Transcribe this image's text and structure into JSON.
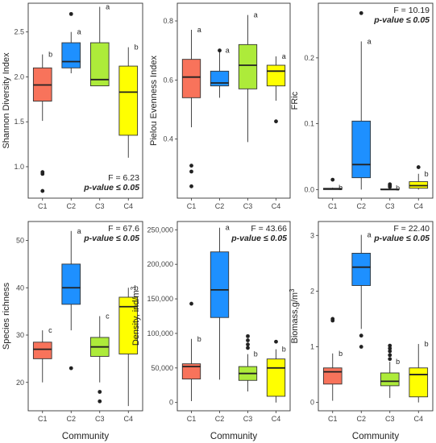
{
  "box_color": "#333333",
  "group_colors": [
    "#F8735B",
    "#1E90FF",
    "#ADEB3A",
    "#FFFF00"
  ],
  "shared_xlabel": "Community",
  "chart_data": [
    {
      "type": "boxplot",
      "ylabel": "Shannon Diversity Index",
      "categories": [
        "C1",
        "C2",
        "C3",
        "C4"
      ],
      "ylim": [
        0.65,
        2.82
      ],
      "yticks": [
        1.0,
        1.5,
        2.0,
        2.5
      ],
      "ytick_labels": [
        "1.0",
        "1.5",
        "2.0",
        "2.5"
      ],
      "stats": {
        "f": "F = 6.23",
        "p": "p-value ≤ 0.05"
      },
      "boxes": [
        {
          "label": "b",
          "q1": 1.73,
          "median": 1.91,
          "q3": 2.1,
          "whisker_low": 1.51,
          "whisker_high": 2.25,
          "outliers": [
            0.94,
            0.92,
            0.73
          ]
        },
        {
          "label": "a",
          "q1": 2.1,
          "median": 2.17,
          "q3": 2.38,
          "whisker_low": 2.04,
          "whisker_high": 2.5,
          "outliers": [
            2.7
          ]
        },
        {
          "label": "a",
          "q1": 1.9,
          "median": 1.97,
          "q3": 2.38,
          "whisker_low": 1.9,
          "whisker_high": 2.78,
          "outliers": []
        },
        {
          "label": "b",
          "q1": 1.35,
          "median": 1.83,
          "q3": 2.12,
          "whisker_low": 1.1,
          "whisker_high": 2.33,
          "outliers": []
        }
      ]
    },
    {
      "type": "boxplot",
      "ylabel": "Pielou Evenness Index",
      "categories": [
        "C1",
        "C2",
        "C3",
        "C4"
      ],
      "ylim": [
        0.2,
        0.86
      ],
      "yticks": [
        0.4,
        0.6,
        0.8
      ],
      "ytick_labels": [
        "0.4",
        "0.6",
        "0.8"
      ],
      "stats": {
        "f": "",
        "p": ""
      },
      "boxes": [
        {
          "label": "a",
          "q1": 0.54,
          "median": 0.61,
          "q3": 0.67,
          "whisker_low": 0.44,
          "whisker_high": 0.77,
          "outliers": [
            0.31,
            0.29,
            0.24
          ]
        },
        {
          "label": "a",
          "q1": 0.58,
          "median": 0.59,
          "q3": 0.63,
          "whisker_low": 0.54,
          "whisker_high": 0.7,
          "outliers": [
            0.7
          ]
        },
        {
          "label": "a",
          "q1": 0.57,
          "median": 0.65,
          "q3": 0.72,
          "whisker_low": 0.39,
          "whisker_high": 0.82,
          "outliers": []
        },
        {
          "label": "a",
          "q1": 0.58,
          "median": 0.63,
          "q3": 0.65,
          "whisker_low": 0.53,
          "whisker_high": 0.68,
          "outliers": [
            0.46
          ]
        }
      ]
    },
    {
      "type": "boxplot",
      "ylabel": "FRic",
      "categories": [
        "C1",
        "C2",
        "C3",
        "C4"
      ],
      "ylim": [
        -0.013,
        0.283
      ],
      "yticks": [
        0.0,
        0.1,
        0.2
      ],
      "ytick_labels": [
        "0.0",
        "0.1",
        "0.2"
      ],
      "stats": {
        "f": "F = 10.19",
        "p": "p-value ≤ 0.05"
      },
      "boxes": [
        {
          "label": "b",
          "q1": 0.0,
          "median": 0.001,
          "q3": 0.002,
          "whisker_low": 0.0,
          "whisker_high": 0.003,
          "outliers": [
            0.015
          ]
        },
        {
          "label": "a",
          "q1": 0.018,
          "median": 0.038,
          "q3": 0.104,
          "whisker_low": 0.0,
          "whisker_high": 0.225,
          "outliers": [
            0.268
          ]
        },
        {
          "label": "b",
          "q1": 0.0,
          "median": 0.0,
          "q3": 0.001,
          "whisker_low": 0.0,
          "whisker_high": 0.002,
          "outliers": [
            0.004,
            0.006,
            0.008
          ]
        },
        {
          "label": "b",
          "q1": 0.002,
          "median": 0.006,
          "q3": 0.012,
          "whisker_low": 0.0,
          "whisker_high": 0.024,
          "outliers": [
            0.034
          ]
        }
      ]
    },
    {
      "type": "boxplot",
      "ylabel": "Species richness",
      "categories": [
        "C1",
        "C2",
        "C3",
        "C4"
      ],
      "ylim": [
        14,
        54
      ],
      "yticks": [
        20,
        30,
        40,
        50
      ],
      "ytick_labels": [
        "20",
        "30",
        "40",
        "50"
      ],
      "stats": {
        "f": "F = 67.6",
        "p": "p-value ≤ 0.05"
      },
      "boxes": [
        {
          "label": "c",
          "q1": 25,
          "median": 27,
          "q3": 28.5,
          "whisker_low": 20,
          "whisker_high": 31,
          "outliers": []
        },
        {
          "label": "a",
          "q1": 36.5,
          "median": 40,
          "q3": 45,
          "whisker_low": 31,
          "whisker_high": 52,
          "outliers": [
            23
          ]
        },
        {
          "label": "c",
          "q1": 25.5,
          "median": 27.5,
          "q3": 29.5,
          "whisker_low": 20,
          "whisker_high": 34,
          "outliers": [
            18,
            16
          ]
        },
        {
          "label": "b",
          "q1": 26,
          "median": 36,
          "q3": 38,
          "whisker_low": 15,
          "whisker_high": 40,
          "outliers": []
        }
      ]
    },
    {
      "type": "boxplot",
      "ylabel": "Density, ind/m3",
      "categories": [
        "C1",
        "C2",
        "C3",
        "C4"
      ],
      "ylim": [
        -12000,
        262000
      ],
      "yticks": [
        0,
        50000,
        100000,
        150000,
        200000,
        250000
      ],
      "ytick_labels": [
        "0",
        "50,000",
        "100,000",
        "150,000",
        "200,000",
        "250,000"
      ],
      "stats": {
        "f": "F = 43.66",
        "p": "p-value ≤ 0.05"
      },
      "boxes": [
        {
          "label": "b",
          "q1": 34000,
          "median": 52000,
          "q3": 56000,
          "whisker_low": 2000,
          "whisker_high": 92000,
          "outliers": [
            143000
          ]
        },
        {
          "label": "a",
          "q1": 123000,
          "median": 163000,
          "q3": 218000,
          "whisker_low": 33000,
          "whisker_high": 253000,
          "outliers": []
        },
        {
          "label": "b",
          "q1": 32000,
          "median": 42000,
          "q3": 52000,
          "whisker_low": 16000,
          "whisker_high": 70000,
          "outliers": [
            79000,
            84000,
            90000,
            96000
          ]
        },
        {
          "label": "b",
          "q1": 9000,
          "median": 50000,
          "q3": 63000,
          "whisker_low": 0,
          "whisker_high": 77000,
          "outliers": [
            88000
          ]
        }
      ]
    },
    {
      "type": "boxplot",
      "ylabel": "Biomass,g/m3",
      "categories": [
        "C1",
        "C2",
        "C3",
        "C4"
      ],
      "ylim": [
        -0.15,
        3.25
      ],
      "yticks": [
        0,
        1,
        2,
        3
      ],
      "ytick_labels": [
        "0",
        "1",
        "2",
        "3"
      ],
      "stats": {
        "f": "F = 22.40",
        "p": "p-value ≤ 0.05"
      },
      "boxes": [
        {
          "label": "b",
          "q1": 0.33,
          "median": 0.55,
          "q3": 0.62,
          "whisker_low": 0.03,
          "whisker_high": 0.88,
          "outliers": [
            1.5,
            1.47
          ]
        },
        {
          "label": "a",
          "q1": 2.1,
          "median": 2.43,
          "q3": 2.68,
          "whisker_low": 1.32,
          "whisker_high": 3.01,
          "outliers": [
            1.2,
            1.0
          ]
        },
        {
          "label": "b",
          "q1": 0.3,
          "median": 0.38,
          "q3": 0.53,
          "whisker_low": 0.08,
          "whisker_high": 0.73,
          "outliers": [
            0.78,
            0.85,
            0.92,
            0.97,
            1.02
          ]
        },
        {
          "label": "b",
          "q1": 0.1,
          "median": 0.5,
          "q3": 0.62,
          "whisker_low": 0.0,
          "whisker_high": 1.05,
          "outliers": []
        }
      ]
    }
  ]
}
